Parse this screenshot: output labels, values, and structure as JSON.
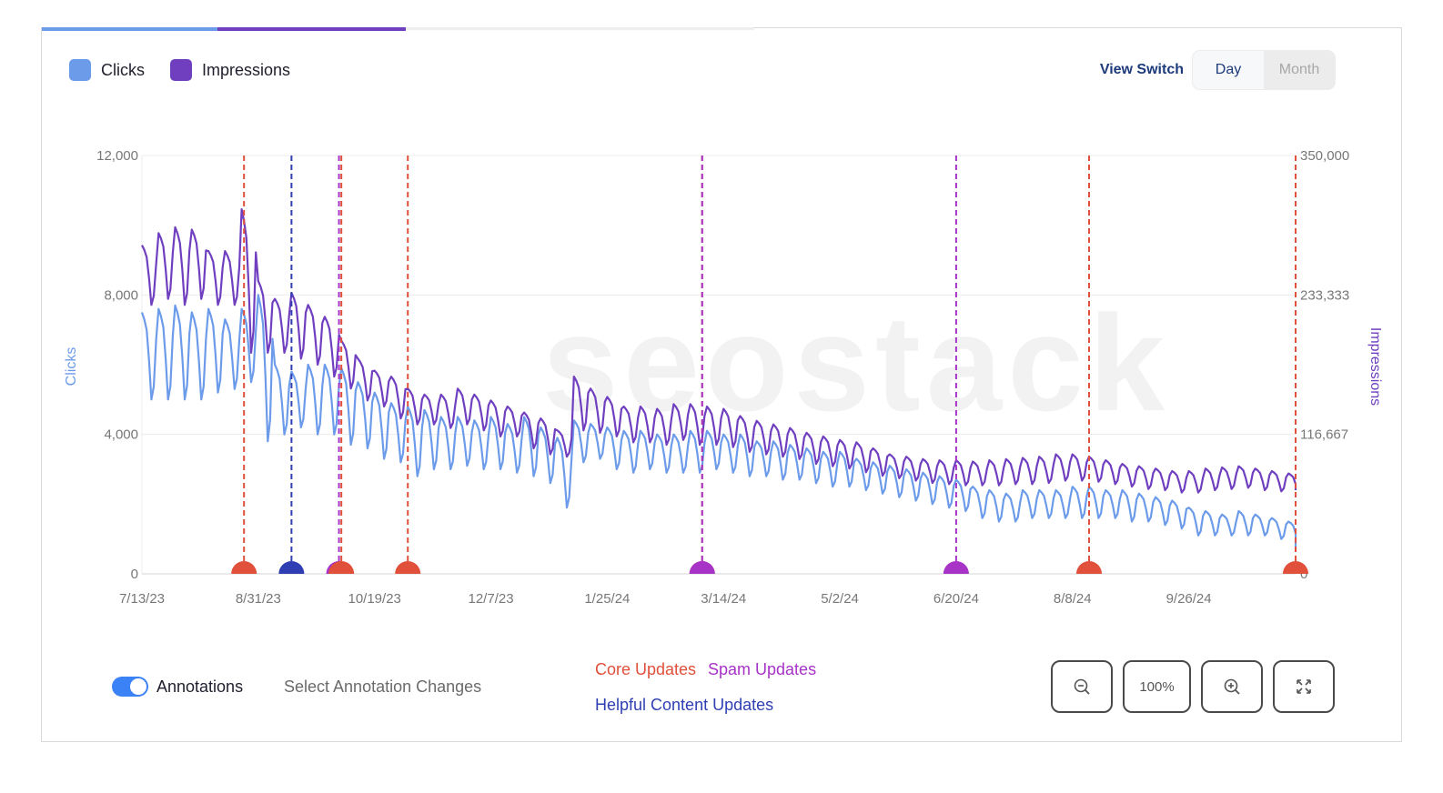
{
  "legend": {
    "clicks_label": "Clicks",
    "impressions_label": "Impressions"
  },
  "view_switch": {
    "label": "View Switch",
    "options": [
      "Day",
      "Month"
    ],
    "selected": "Day"
  },
  "annotations": {
    "toggle_label": "Annotations",
    "toggle_on": true,
    "select_label": "Select Annotation Changes",
    "legend": {
      "core": "Core Updates",
      "spam": "Spam Updates",
      "helpful": "Helpful Content Updates"
    }
  },
  "zoom": {
    "zoom_out_icon": "zoom-out-icon",
    "level_label": "100%",
    "zoom_in_icon": "zoom-in-icon",
    "fullscreen_icon": "fullscreen-icon"
  },
  "colors": {
    "clicks": "#6c9bea",
    "impressions": "#6f3fc0",
    "core": "#e0503a",
    "spam": "#a733c7",
    "helpful": "#2f3fb3"
  },
  "chart_data": {
    "type": "line",
    "x_start": "2023-07-13",
    "x_end": "2024-11-10",
    "x_ticks": [
      "7/13/23",
      "8/31/23",
      "10/19/23",
      "12/7/23",
      "1/25/24",
      "3/14/24",
      "5/2/24",
      "6/20/24",
      "8/8/24",
      "9/26/24"
    ],
    "y_left": {
      "label": "Clicks",
      "ticks": [
        "0",
        "4,000",
        "8,000",
        "12,000"
      ],
      "range": [
        0,
        12000
      ]
    },
    "y_right": {
      "label": "Impressions",
      "ticks": [
        "0",
        "116,667",
        "233,333",
        "350,000"
      ],
      "range": [
        0,
        350000
      ]
    },
    "grid": true,
    "legend_position": "top-left",
    "series": [
      {
        "name": "Clicks",
        "axis": "left",
        "weekly_peak_low": [
          [
            7500,
            5000
          ],
          [
            7600,
            5000
          ],
          [
            7700,
            5000
          ],
          [
            7500,
            5000
          ],
          [
            7600,
            5200
          ],
          [
            7300,
            5300
          ],
          [
            7600,
            5500
          ],
          [
            8000,
            3800
          ],
          [
            6000,
            4000
          ],
          [
            5800,
            4200
          ],
          [
            6000,
            4000
          ],
          [
            6000,
            4000
          ],
          [
            5900,
            3700
          ],
          [
            5500,
            3600
          ],
          [
            5200,
            3300
          ],
          [
            4900,
            3200
          ],
          [
            4800,
            2800
          ],
          [
            4700,
            3000
          ],
          [
            4500,
            3000
          ],
          [
            4500,
            3100
          ],
          [
            4400,
            3000
          ],
          [
            4500,
            3000
          ],
          [
            4300,
            2900
          ],
          [
            4500,
            2800
          ],
          [
            4200,
            2600
          ],
          [
            3900,
            1900
          ],
          [
            4400,
            3200
          ],
          [
            4300,
            3300
          ],
          [
            4200,
            3000
          ],
          [
            4100,
            2900
          ],
          [
            4100,
            3000
          ],
          [
            4000,
            2900
          ],
          [
            4000,
            2900
          ],
          [
            4100,
            2900
          ],
          [
            4100,
            3000
          ],
          [
            4000,
            2900
          ],
          [
            4000,
            2800
          ],
          [
            3800,
            2800
          ],
          [
            3800,
            2700
          ],
          [
            3700,
            2700
          ],
          [
            3600,
            2600
          ],
          [
            3500,
            2500
          ],
          [
            3500,
            2500
          ],
          [
            3300,
            2400
          ],
          [
            3200,
            2300
          ],
          [
            3100,
            2200
          ],
          [
            3000,
            2100
          ],
          [
            2900,
            2000
          ],
          [
            2800,
            1900
          ],
          [
            2700,
            1800
          ],
          [
            2500,
            1600
          ],
          [
            2400,
            1500
          ],
          [
            2300,
            1500
          ],
          [
            2400,
            1600
          ],
          [
            2400,
            1600
          ],
          [
            2400,
            1600
          ],
          [
            2500,
            1600
          ],
          [
            2500,
            1600
          ],
          [
            2400,
            1600
          ],
          [
            2400,
            1500
          ],
          [
            2300,
            1500
          ],
          [
            2200,
            1400
          ],
          [
            2100,
            1300
          ],
          [
            1900,
            1100
          ],
          [
            1800,
            1100
          ],
          [
            1700,
            1100
          ],
          [
            1800,
            1100
          ],
          [
            1700,
            1100
          ],
          [
            1600,
            1000
          ],
          [
            1500,
            900
          ]
        ],
        "last_value": 700
      },
      {
        "name": "Impressions",
        "axis": "right",
        "weekly_peak_low": [
          [
            275000,
            225000
          ],
          [
            285000,
            230000
          ],
          [
            290000,
            225000
          ],
          [
            288000,
            230000
          ],
          [
            270000,
            225000
          ],
          [
            270000,
            225000
          ],
          [
            305000,
            185000
          ],
          [
            245000,
            185000
          ],
          [
            230000,
            185000
          ],
          [
            235000,
            180000
          ],
          [
            225000,
            175000
          ],
          [
            215000,
            165000
          ],
          [
            195000,
            155000
          ],
          [
            180000,
            145000
          ],
          [
            170000,
            140000
          ],
          [
            165000,
            130000
          ],
          [
            155000,
            125000
          ],
          [
            150000,
            125000
          ],
          [
            150000,
            122000
          ],
          [
            155000,
            125000
          ],
          [
            150000,
            120000
          ],
          [
            145000,
            115000
          ],
          [
            140000,
            115000
          ],
          [
            135000,
            105000
          ],
          [
            130000,
            100000
          ],
          [
            120000,
            98000
          ],
          [
            165000,
            120000
          ],
          [
            155000,
            118000
          ],
          [
            148000,
            115000
          ],
          [
            140000,
            110000
          ],
          [
            140000,
            110000
          ],
          [
            138000,
            108000
          ],
          [
            142000,
            112000
          ],
          [
            142000,
            108000
          ],
          [
            140000,
            108000
          ],
          [
            138000,
            106000
          ],
          [
            132000,
            102000
          ],
          [
            128000,
            100000
          ],
          [
            125000,
            98000
          ],
          [
            122000,
            96000
          ],
          [
            118000,
            92000
          ],
          [
            115000,
            90000
          ],
          [
            112000,
            88000
          ],
          [
            110000,
            85000
          ],
          [
            105000,
            82000
          ],
          [
            100000,
            80000
          ],
          [
            98000,
            78000
          ],
          [
            96000,
            76000
          ],
          [
            95000,
            75000
          ],
          [
            95000,
            74000
          ],
          [
            94000,
            74000
          ],
          [
            95000,
            74000
          ],
          [
            96000,
            75000
          ],
          [
            97000,
            75000
          ],
          [
            98000,
            76000
          ],
          [
            100000,
            78000
          ],
          [
            100000,
            78000
          ],
          [
            98000,
            77000
          ],
          [
            95000,
            75000
          ],
          [
            92000,
            73000
          ],
          [
            90000,
            71000
          ],
          [
            88000,
            70000
          ],
          [
            86000,
            68000
          ],
          [
            86000,
            68000
          ],
          [
            88000,
            70000
          ],
          [
            89000,
            71000
          ],
          [
            90000,
            72000
          ],
          [
            88000,
            70000
          ],
          [
            86000,
            69000
          ],
          [
            84000,
            68000
          ]
        ],
        "last_value": 70000
      }
    ],
    "annotations": [
      {
        "date": "2023-08-25",
        "type": "core"
      },
      {
        "date": "2023-09-14",
        "type": "helpful"
      },
      {
        "date": "2023-10-04",
        "type": "spam"
      },
      {
        "date": "2023-10-05",
        "type": "core"
      },
      {
        "date": "2023-11-02",
        "type": "core"
      },
      {
        "date": "2024-03-05",
        "type": "core"
      },
      {
        "date": "2024-03-05",
        "type": "spam"
      },
      {
        "date": "2024-06-20",
        "type": "spam"
      },
      {
        "date": "2024-08-15",
        "type": "core"
      },
      {
        "date": "2024-11-10",
        "type": "core"
      }
    ]
  }
}
